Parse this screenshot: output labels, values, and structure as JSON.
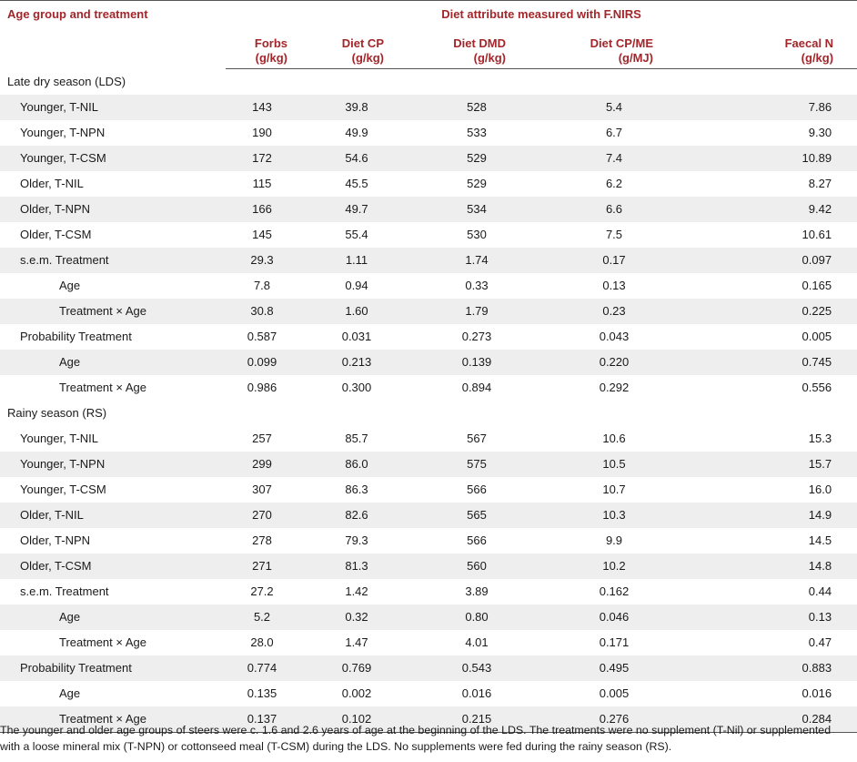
{
  "header": {
    "age_group": "Age group and treatment",
    "group_title": "Diet attribute measured with F.NIRS",
    "columns": [
      {
        "name": "Forbs",
        "unit": "(g/kg)"
      },
      {
        "name": "Diet CP",
        "unit": "(g/kg)"
      },
      {
        "name": "Diet DMD",
        "unit": "(g/kg)"
      },
      {
        "name": "Diet CP/ME",
        "unit": "(g/MJ)"
      },
      {
        "name": "Faecal N",
        "unit": "(g/kg)"
      }
    ]
  },
  "sections": [
    {
      "title": "Late dry season (LDS)",
      "rows": [
        {
          "label": "Younger, T-NIL",
          "values": [
            "143",
            "39.8",
            "528",
            "5.4",
            "7.86"
          ]
        },
        {
          "label": "Younger, T-NPN",
          "values": [
            "190",
            "49.9",
            "533",
            "6.7",
            "9.30"
          ]
        },
        {
          "label": "Younger, T-CSM",
          "values": [
            "172",
            "54.6",
            "529",
            "7.4",
            "10.89"
          ]
        },
        {
          "label": "Older, T-NIL",
          "values": [
            "115",
            "45.5",
            "529",
            "6.2",
            "8.27"
          ]
        },
        {
          "label": "Older, T-NPN",
          "values": [
            "166",
            "49.7",
            "534",
            "6.6",
            "9.42"
          ]
        },
        {
          "label": "Older, T-CSM",
          "values": [
            "145",
            "55.4",
            "530",
            "7.5",
            "10.61"
          ]
        },
        {
          "label": "s.e.m. Treatment",
          "values": [
            "29.3",
            "1.11",
            "1.74",
            "0.17",
            "0.097"
          ]
        },
        {
          "label": "Age",
          "values": [
            "7.8",
            "0.94",
            "0.33",
            "0.13",
            "0.165"
          ]
        },
        {
          "label": "Treatment × Age",
          "values": [
            "30.8",
            "1.60",
            "1.79",
            "0.23",
            "0.225"
          ]
        },
        {
          "label": "Probability Treatment",
          "values": [
            "0.587",
            "0.031",
            "0.273",
            "0.043",
            "0.005"
          ]
        },
        {
          "label": "Age",
          "values": [
            "0.099",
            "0.213",
            "0.139",
            "0.220",
            "0.745"
          ]
        },
        {
          "label": "Treatment × Age",
          "values": [
            "0.986",
            "0.300",
            "0.894",
            "0.292",
            "0.556"
          ]
        }
      ]
    },
    {
      "title": "Rainy season (RS)",
      "rows": [
        {
          "label": "Younger, T-NIL",
          "values": [
            "257",
            "85.7",
            "567",
            "10.6",
            "15.3"
          ]
        },
        {
          "label": "Younger, T-NPN",
          "values": [
            "299",
            "86.0",
            "575",
            "10.5",
            "15.7"
          ]
        },
        {
          "label": "Younger, T-CSM",
          "values": [
            "307",
            "86.3",
            "566",
            "10.7",
            "16.0"
          ]
        },
        {
          "label": "Older, T-NIL",
          "values": [
            "270",
            "82.6",
            "565",
            "10.3",
            "14.9"
          ]
        },
        {
          "label": "Older, T-NPN",
          "values": [
            "278",
            "79.3",
            "566",
            "9.9",
            "14.5"
          ]
        },
        {
          "label": "Older, T-CSM",
          "values": [
            "271",
            "81.3",
            "560",
            "10.2",
            "14.8"
          ]
        },
        {
          "label": "s.e.m. Treatment",
          "values": [
            "27.2",
            "1.42",
            "3.89",
            "0.162",
            "0.44"
          ]
        },
        {
          "label": "Age",
          "values": [
            "5.2",
            "0.32",
            "0.80",
            "0.046",
            "0.13"
          ]
        },
        {
          "label": "Treatment × Age",
          "values": [
            "28.0",
            "1.47",
            "4.01",
            "0.171",
            "0.47"
          ]
        },
        {
          "label": "Probability Treatment",
          "values": [
            "0.774",
            "0.769",
            "0.543",
            "0.495",
            "0.883"
          ]
        },
        {
          "label": "Age",
          "values": [
            "0.135",
            "0.002",
            "0.016",
            "0.005",
            "0.016"
          ]
        },
        {
          "label": "Treatment × Age",
          "values": [
            "0.137",
            "0.102",
            "0.215",
            "0.276",
            "0.284"
          ]
        }
      ]
    }
  ],
  "footnote": "The younger and older age groups of steers were c. 1.6 and 2.6 years of age at the beginning of the LDS. The treatments were no supplement (T-Nil) or supplemented with a loose mineral mix (T-NPN) or cottonseed meal (T-CSM) during the LDS. No supplements were fed during the rainy season (RS).",
  "colors": {
    "header_text": "#a3262a",
    "stripe": "#eeeeee",
    "rule": "#555555"
  }
}
